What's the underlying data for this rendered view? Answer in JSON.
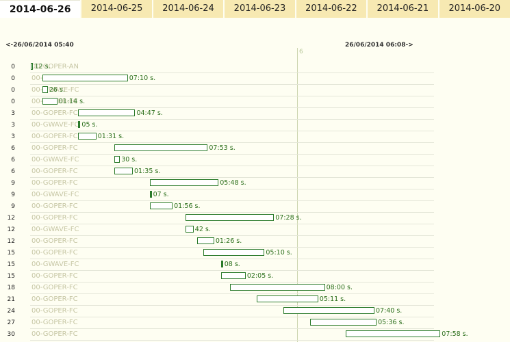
{
  "tabs": [
    "2014-06-26",
    "2014-06-25",
    "2014-06-24",
    "2014-06-23",
    "2014-06-22",
    "2014-06-21",
    "2014-06-20"
  ],
  "active_tab": "2014-06-26",
  "range": {
    "start_label": "<-26/06/2014 05:40",
    "end_label": "26/06/2014 06:08->"
  },
  "marker_label": "6",
  "colors": {
    "bar_border": "#2a7a2a",
    "tab_bg": "#f7e9b2",
    "page_bg": "#fefef2"
  },
  "timeline": {
    "start_sec": 0,
    "end_sec": 1680
  },
  "rows": [
    {
      "num": "0",
      "label": "00-GOPER-AN",
      "start_sec": 0,
      "duration_sec": 12,
      "duration_text": "12 s."
    },
    {
      "num": "0",
      "label": "00-GOPER-FC",
      "start_sec": 60,
      "duration_sec": 430,
      "duration_text": "07:10 s."
    },
    {
      "num": "0",
      "label": "00-GWAVE-FC",
      "start_sec": 60,
      "duration_sec": 26,
      "duration_text": "26 s."
    },
    {
      "num": "0",
      "label": "00-GOPER-FC",
      "start_sec": 60,
      "duration_sec": 74,
      "duration_text": "01:14 s."
    },
    {
      "num": "3",
      "label": "00-GOPER-FC",
      "start_sec": 240,
      "duration_sec": 287,
      "duration_text": "04:47 s."
    },
    {
      "num": "3",
      "label": "00-GWAVE-FC",
      "start_sec": 240,
      "duration_sec": 5,
      "duration_text": "05 s."
    },
    {
      "num": "3",
      "label": "00-GOPER-FC",
      "start_sec": 240,
      "duration_sec": 91,
      "duration_text": "01:31 s."
    },
    {
      "num": "6",
      "label": "00-GOPER-FC",
      "start_sec": 420,
      "duration_sec": 473,
      "duration_text": "07:53 s."
    },
    {
      "num": "6",
      "label": "00-GWAVE-FC",
      "start_sec": 420,
      "duration_sec": 30,
      "duration_text": "30 s."
    },
    {
      "num": "6",
      "label": "00-GOPER-FC",
      "start_sec": 420,
      "duration_sec": 95,
      "duration_text": "01:35 s."
    },
    {
      "num": "9",
      "label": "00-GOPER-FC",
      "start_sec": 600,
      "duration_sec": 348,
      "duration_text": "05:48 s."
    },
    {
      "num": "9",
      "label": "00-GWAVE-FC",
      "start_sec": 600,
      "duration_sec": 7,
      "duration_text": "07 s."
    },
    {
      "num": "9",
      "label": "00-GOPER-FC",
      "start_sec": 600,
      "duration_sec": 116,
      "duration_text": "01:56 s."
    },
    {
      "num": "12",
      "label": "00-GOPER-FC",
      "start_sec": 780,
      "duration_sec": 448,
      "duration_text": "07:28 s."
    },
    {
      "num": "12",
      "label": "00-GWAVE-FC",
      "start_sec": 780,
      "duration_sec": 42,
      "duration_text": "42 s."
    },
    {
      "num": "12",
      "label": "00-GOPER-FC",
      "start_sec": 840,
      "duration_sec": 86,
      "duration_text": "01:26 s."
    },
    {
      "num": "15",
      "label": "00-GOPER-FC",
      "start_sec": 870,
      "duration_sec": 310,
      "duration_text": "05:10 s."
    },
    {
      "num": "15",
      "label": "00-GWAVE-FC",
      "start_sec": 960,
      "duration_sec": 8,
      "duration_text": "08 s."
    },
    {
      "num": "15",
      "label": "00-GOPER-FC",
      "start_sec": 960,
      "duration_sec": 125,
      "duration_text": "02:05 s."
    },
    {
      "num": "18",
      "label": "00-GOPER-FC",
      "start_sec": 1005,
      "duration_sec": 480,
      "duration_text": "08:00 s."
    },
    {
      "num": "21",
      "label": "00-GOPER-FC",
      "start_sec": 1140,
      "duration_sec": 311,
      "duration_text": "05:11 s."
    },
    {
      "num": "24",
      "label": "00-GOPER-FC",
      "start_sec": 1275,
      "duration_sec": 460,
      "duration_text": "07:40 s."
    },
    {
      "num": "27",
      "label": "00-GOPER-FC",
      "start_sec": 1410,
      "duration_sec": 336,
      "duration_text": "05:36 s."
    },
    {
      "num": "30",
      "label": "00-GOPER-FC",
      "start_sec": 1590,
      "duration_sec": 478,
      "duration_text": "07:58 s."
    }
  ]
}
